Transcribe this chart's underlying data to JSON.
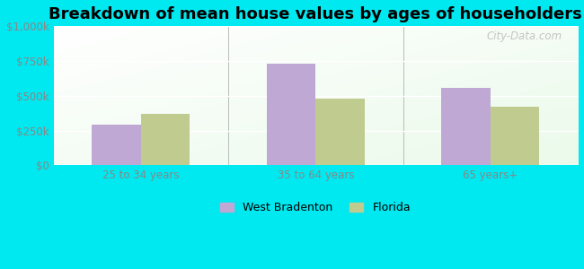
{
  "title": "Breakdown of mean house values by ages of householders",
  "categories": [
    "25 to 34 years",
    "35 to 64 years",
    "65 years+"
  ],
  "west_bradenton": [
    290000,
    730000,
    555000
  ],
  "florida": [
    370000,
    480000,
    420000
  ],
  "ylim": [
    0,
    1000000
  ],
  "yticks": [
    0,
    250000,
    500000,
    750000,
    1000000
  ],
  "ytick_labels": [
    "$0",
    "$250k",
    "$500k",
    "$750k",
    "$1,000k"
  ],
  "bar_color_wb": "#c0a8d5",
  "bar_color_fl": "#c0cb90",
  "background_outer": "#00e8f0",
  "legend_label_wb": "West Bradenton",
  "legend_label_fl": "Florida",
  "title_fontsize": 13,
  "bar_width": 0.28,
  "watermark": "City-Data.com",
  "tick_color": "#888888",
  "xlabel_color": "#888888"
}
